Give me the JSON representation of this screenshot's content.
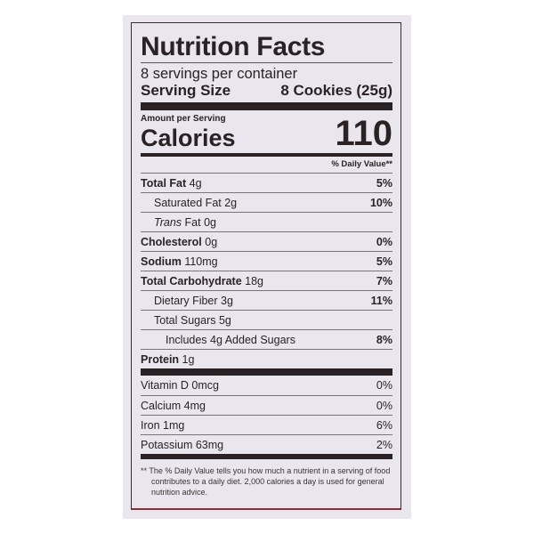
{
  "title": "Nutrition Facts",
  "servings_per_container": "8 servings per container",
  "serving_size": {
    "label": "Serving Size",
    "value": "8 Cookies (25g)"
  },
  "amount_per_serving": "Amount per Serving",
  "calories": {
    "label": "Calories",
    "value": "110"
  },
  "daily_value_header": "% Daily Value**",
  "nutrients": [
    {
      "name": "Total Fat",
      "amount": "4g",
      "dv": "5%",
      "bold": true,
      "indent": 0
    },
    {
      "name": "Saturated Fat",
      "amount": "2g",
      "dv": "10%",
      "bold": false,
      "indent": 1
    },
    {
      "name": "Trans",
      "name_suffix": " Fat",
      "amount": "0g",
      "dv": "",
      "bold": false,
      "indent": 1
    },
    {
      "name": "Cholesterol",
      "amount": "0g",
      "dv": "0%",
      "bold": true,
      "indent": 0
    },
    {
      "name": "Sodium",
      "amount": "110mg",
      "dv": "5%",
      "bold": true,
      "indent": 0
    },
    {
      "name": "Total Carbohydrate",
      "amount": "18g",
      "dv": "7%",
      "bold": true,
      "indent": 0
    },
    {
      "name": "Dietary Fiber",
      "amount": "3g",
      "dv": "11%",
      "bold": false,
      "indent": 1
    },
    {
      "name": "Total Sugars",
      "amount": "5g",
      "dv": "",
      "bold": false,
      "indent": 1
    },
    {
      "name": "Includes 4g Added Sugars",
      "amount": "",
      "dv": "8%",
      "bold": false,
      "indent": 2
    },
    {
      "name": "Protein",
      "amount": "1g",
      "dv": "",
      "bold": true,
      "indent": 0
    }
  ],
  "vitamins": [
    {
      "name": "Vitamin D 0mcg",
      "dv": "0%"
    },
    {
      "name": "Calcium 4mg",
      "dv": "0%"
    },
    {
      "name": "Iron 1mg",
      "dv": "6%"
    },
    {
      "name": "Potassium 63mg",
      "dv": "2%"
    }
  ],
  "footnote": "** The % Daily Value tells you how much a nutrient in a serving of food contributes to a daily diet. 2,000 calories a day is used for general nutrition advice."
}
